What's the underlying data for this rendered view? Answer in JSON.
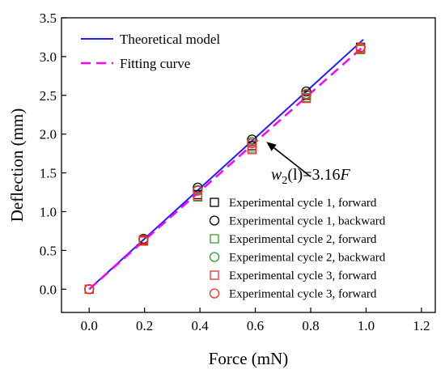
{
  "chart_data": {
    "type": "line+scatter",
    "xlabel": "Force (mN)",
    "ylabel": "Deflection (mm)",
    "xlim": [
      -0.1,
      1.25
    ],
    "ylim": [
      -0.3,
      3.5
    ],
    "xticks": [
      "0.0",
      "0.2",
      "0.4",
      "0.6",
      "0.8",
      "1.0",
      "1.2"
    ],
    "xtick_values": [
      0,
      0.2,
      0.4,
      0.6,
      0.8,
      1.0,
      1.2
    ],
    "yticks": [
      "0.0",
      "0.5",
      "1.0",
      "1.5",
      "2.0",
      "2.5",
      "3.0",
      "3.5"
    ],
    "ytick_values": [
      0,
      0.5,
      1.0,
      1.5,
      2.0,
      2.5,
      3.0,
      3.5
    ],
    "grid": false,
    "lines": [
      {
        "name": "Theoretical model",
        "color": "#1f1fff",
        "dash": "solid",
        "x": [
          0,
          0.99
        ],
        "y": [
          0,
          3.22
        ]
      },
      {
        "name": "Fitting curve",
        "color": "#ff00ff",
        "dash": "dashed",
        "x": [
          0,
          0.99
        ],
        "y": [
          0,
          3.13
        ]
      }
    ],
    "scatter_series": [
      {
        "name": "Experimental cycle 1, forward",
        "marker": "square",
        "color": "#000000",
        "x": [
          0,
          0.196,
          0.392,
          0.588,
          0.784,
          0.98
        ],
        "y": [
          0,
          0.63,
          1.22,
          1.85,
          2.5,
          3.12
        ]
      },
      {
        "name": "Experimental cycle 1, backward",
        "marker": "circle",
        "color": "#000000",
        "x": [
          0,
          0.196,
          0.392,
          0.588,
          0.784,
          0.98
        ],
        "y": [
          0,
          0.65,
          1.31,
          1.93,
          2.55,
          3.12
        ]
      },
      {
        "name": "Experimental cycle 2, forward",
        "marker": "square",
        "color": "#2ca02c",
        "x": [
          0,
          0.196,
          0.392,
          0.588,
          0.784,
          0.98
        ],
        "y": [
          0,
          0.62,
          1.19,
          1.82,
          2.47,
          3.09
        ]
      },
      {
        "name": "Experimental cycle 2, backward",
        "marker": "circle",
        "color": "#2ca02c",
        "x": [
          0,
          0.196,
          0.392,
          0.588,
          0.784,
          0.98
        ],
        "y": [
          0,
          0.64,
          1.28,
          1.9,
          2.52,
          3.11
        ]
      },
      {
        "name": "Experimental cycle 3, forward",
        "marker": "square",
        "color": "#ff2a2a",
        "x": [
          0,
          0.196,
          0.392,
          0.588,
          0.784,
          0.98
        ],
        "y": [
          0,
          0.62,
          1.2,
          1.8,
          2.46,
          3.1
        ]
      },
      {
        "name": "Experimental cycle 3, forward",
        "marker": "circle",
        "color": "#ff2a2a",
        "x": [
          0,
          0.196,
          0.392,
          0.588,
          0.784,
          0.98
        ],
        "y": [
          0,
          0.64,
          1.27,
          1.88,
          2.51,
          3.12
        ]
      }
    ],
    "annotation": {
      "text_main": "w",
      "text_sub": "2",
      "text_rest": "(l)=3.16",
      "text_var": "F",
      "arrow_to": [
        0.64,
        1.9
      ],
      "arrow_from": [
        0.8,
        1.45
      ]
    }
  }
}
